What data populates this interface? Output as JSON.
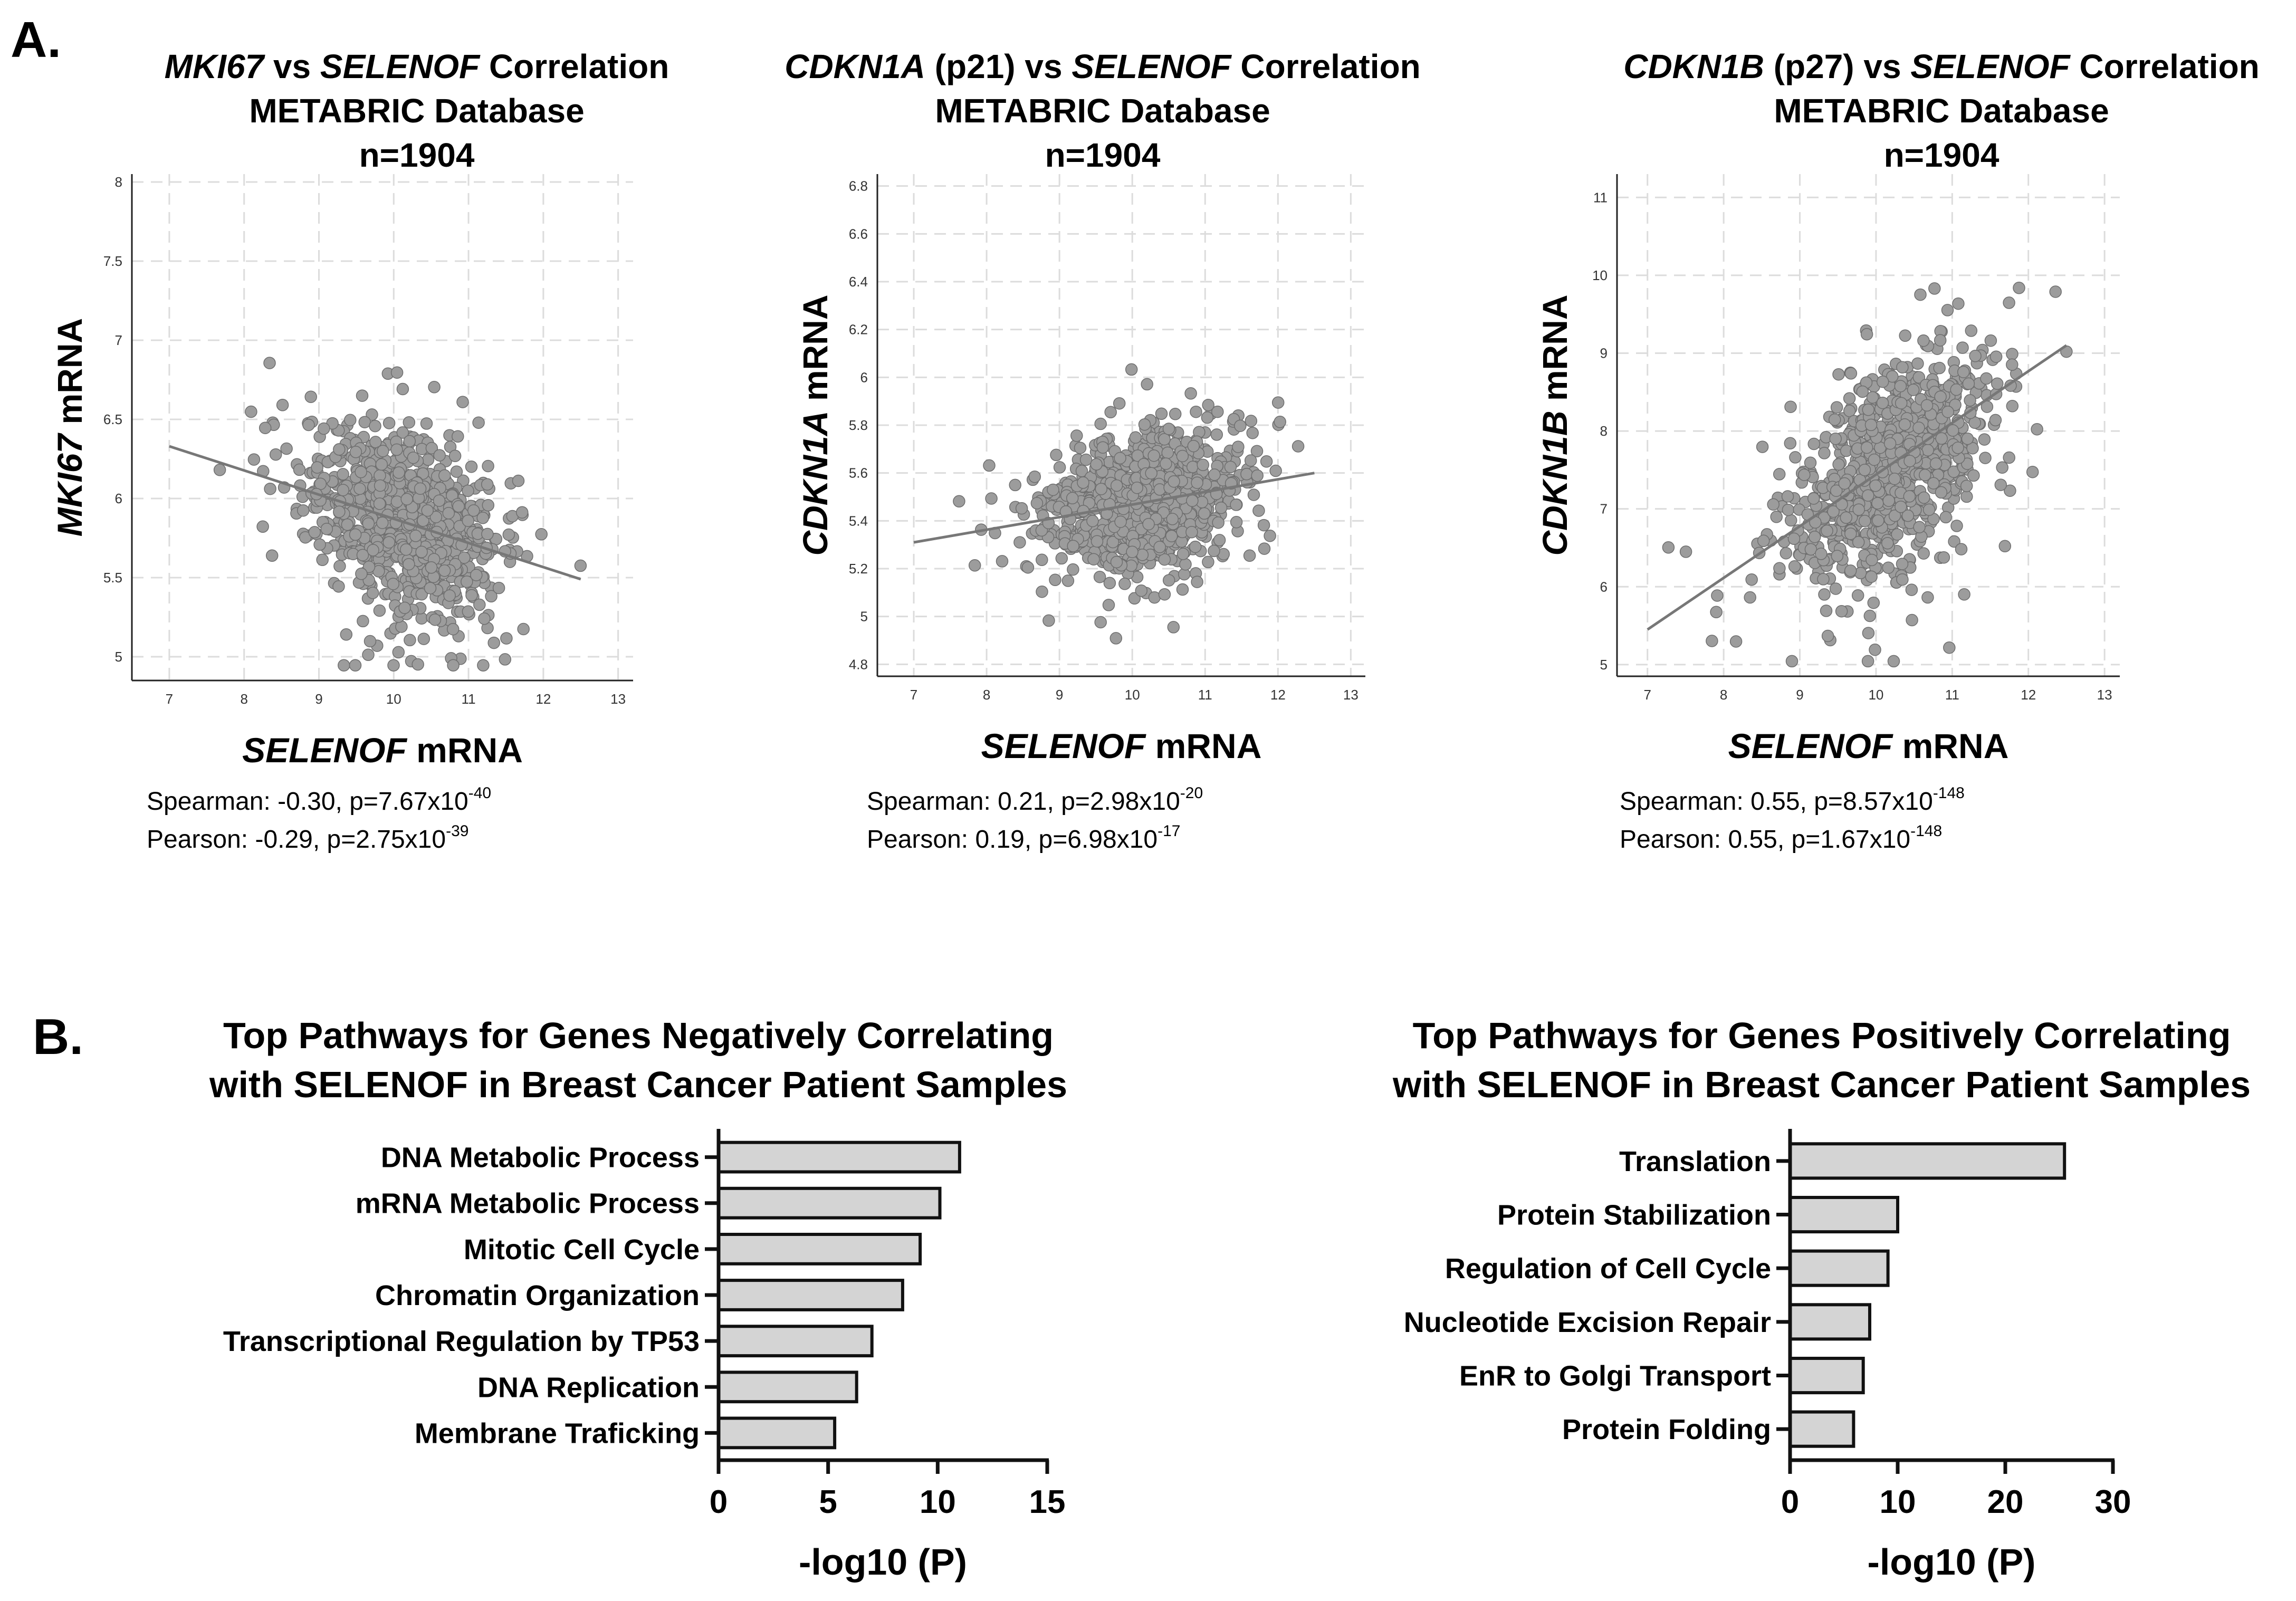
{
  "panel_labels": {
    "a": "A.",
    "b": "B."
  },
  "chart_data": [
    {
      "type": "scatter",
      "id": "mki67",
      "title_lines": [
        [
          {
            "t": "MKI67",
            "i": true
          },
          {
            "t": " vs ",
            "i": false
          },
          {
            "t": "SELENOF",
            "i": true
          },
          {
            "t": " Correlation",
            "i": false
          }
        ],
        [
          {
            "t": "METABRIC Database",
            "i": false
          }
        ],
        [
          {
            "t": "n=1904",
            "i": false
          }
        ]
      ],
      "xlabel": [
        {
          "t": "SELENOF",
          "i": true
        },
        {
          "t": " mRNA",
          "i": false
        }
      ],
      "ylabel": [
        {
          "t": "MKI67",
          "i": true
        },
        {
          "t": " mRNA",
          "i": false
        }
      ],
      "xlim": [
        6.5,
        13.2
      ],
      "ylim": [
        4.85,
        8.05
      ],
      "xticks": [
        7,
        8,
        9,
        10,
        11,
        12,
        13
      ],
      "yticks": [
        5,
        5.5,
        6,
        6.5,
        7,
        7.5,
        8
      ],
      "n": 1904,
      "x_mean": 10.2,
      "x_sd": 0.62,
      "fit": {
        "x": [
          7.0,
          12.5
        ],
        "y": [
          6.33,
          5.49
        ]
      },
      "y_resid_sd": 0.27,
      "stats": [
        {
          "pre": "Spearman: -0.30, p=7.67x10",
          "exp": "-40"
        },
        {
          "pre": "Pearson: -0.29, p=2.75x10",
          "exp": "-39"
        }
      ]
    },
    {
      "type": "scatter",
      "id": "cdkn1a",
      "title_lines": [
        [
          {
            "t": "CDKN1A",
            "i": true
          },
          {
            "t": " (p21) vs ",
            "i": false
          },
          {
            "t": "SELENOF",
            "i": true
          },
          {
            "t": " Correlation",
            "i": false
          }
        ],
        [
          {
            "t": "METABRIC Database",
            "i": false
          }
        ],
        [
          {
            "t": "n=1904",
            "i": false
          }
        ]
      ],
      "xlabel": [
        {
          "t": "SELENOF",
          "i": true
        },
        {
          "t": " mRNA",
          "i": false
        }
      ],
      "ylabel": [
        {
          "t": "CDKN1A",
          "i": true
        },
        {
          "t": " mRNA",
          "i": false
        }
      ],
      "xlim": [
        6.5,
        13.2
      ],
      "ylim": [
        4.75,
        6.85
      ],
      "xticks": [
        7,
        8,
        9,
        10,
        11,
        12,
        13
      ],
      "yticks": [
        4.8,
        5,
        5.2,
        5.4,
        5.6,
        5.8,
        6,
        6.2,
        6.4,
        6.6,
        6.8
      ],
      "n": 1904,
      "x_mean": 10.2,
      "x_sd": 0.62,
      "fit": {
        "x": [
          7.0,
          12.5
        ],
        "y": [
          5.31,
          5.6
        ]
      },
      "y_resid_sd": 0.14,
      "stats": [
        {
          "pre": "Spearman: 0.21, p=2.98x10",
          "exp": "-20"
        },
        {
          "pre": "Pearson: 0.19, p=6.98x10",
          "exp": "-17"
        }
      ]
    },
    {
      "type": "scatter",
      "id": "cdkn1b",
      "title_lines": [
        [
          {
            "t": "CDKN1B",
            "i": true
          },
          {
            "t": " (p27) vs ",
            "i": false
          },
          {
            "t": "SELENOF",
            "i": true
          },
          {
            "t": " Correlation",
            "i": false
          }
        ],
        [
          {
            "t": "METABRIC Database",
            "i": false
          }
        ],
        [
          {
            "t": "n=1904",
            "i": false
          }
        ]
      ],
      "xlabel": [
        {
          "t": "SELENOF",
          "i": true
        },
        {
          "t": " mRNA",
          "i": false
        }
      ],
      "ylabel": [
        {
          "t": "CDKN1B",
          "i": true
        },
        {
          "t": " mRNA",
          "i": false
        }
      ],
      "xlim": [
        6.6,
        13.2
      ],
      "ylim": [
        4.85,
        11.3
      ],
      "xticks": [
        7,
        8,
        9,
        10,
        11,
        12,
        13
      ],
      "yticks": [
        5,
        6,
        7,
        8,
        9,
        10,
        11
      ],
      "n": 1904,
      "x_mean": 10.2,
      "x_sd": 0.62,
      "fit": {
        "x": [
          7.0,
          12.5
        ],
        "y": [
          5.45,
          9.1
        ]
      },
      "y_resid_sd": 0.62,
      "stats": [
        {
          "pre": "Spearman: 0.55, p=8.57x10",
          "exp": "-148"
        },
        {
          "pre": "Pearson: 0.55, p=1.67x10",
          "exp": "-148"
        }
      ]
    },
    {
      "type": "bar",
      "id": "neg",
      "orientation": "horizontal",
      "title_lines": [
        "Top Pathways for Genes Negatively Correlating",
        "with SELENOF in Breast Cancer Patient Samples"
      ],
      "categories": [
        "DNA Metabolic Process",
        "mRNA Metabolic Process",
        "Mitotic Cell Cycle",
        "Chromatin Organization",
        "Transcriptional Regulation by TP53",
        "DNA Replication",
        "Membrane Traficking"
      ],
      "values": [
        11.0,
        10.1,
        9.2,
        8.4,
        7.0,
        6.3,
        5.3
      ],
      "xlim": [
        0,
        15
      ],
      "xticks": [
        0,
        5,
        10,
        15
      ],
      "xlabel": "-log10 (P)"
    },
    {
      "type": "bar",
      "id": "pos",
      "orientation": "horizontal",
      "title_lines": [
        "Top Pathways for Genes Positively Correlating",
        "with SELENOF in Breast Cancer Patient Samples"
      ],
      "categories": [
        "Translation",
        "Protein Stabilization",
        "Regulation of Cell Cycle",
        "Nucleotide Excision Repair",
        "EnR to Golgi Transport",
        "Protein Folding"
      ],
      "values": [
        25.5,
        10.0,
        9.1,
        7.4,
        6.8,
        5.9
      ],
      "xlim": [
        0,
        30
      ],
      "xticks": [
        0,
        10,
        20,
        30
      ],
      "xlabel": "-log10 (P)"
    }
  ]
}
